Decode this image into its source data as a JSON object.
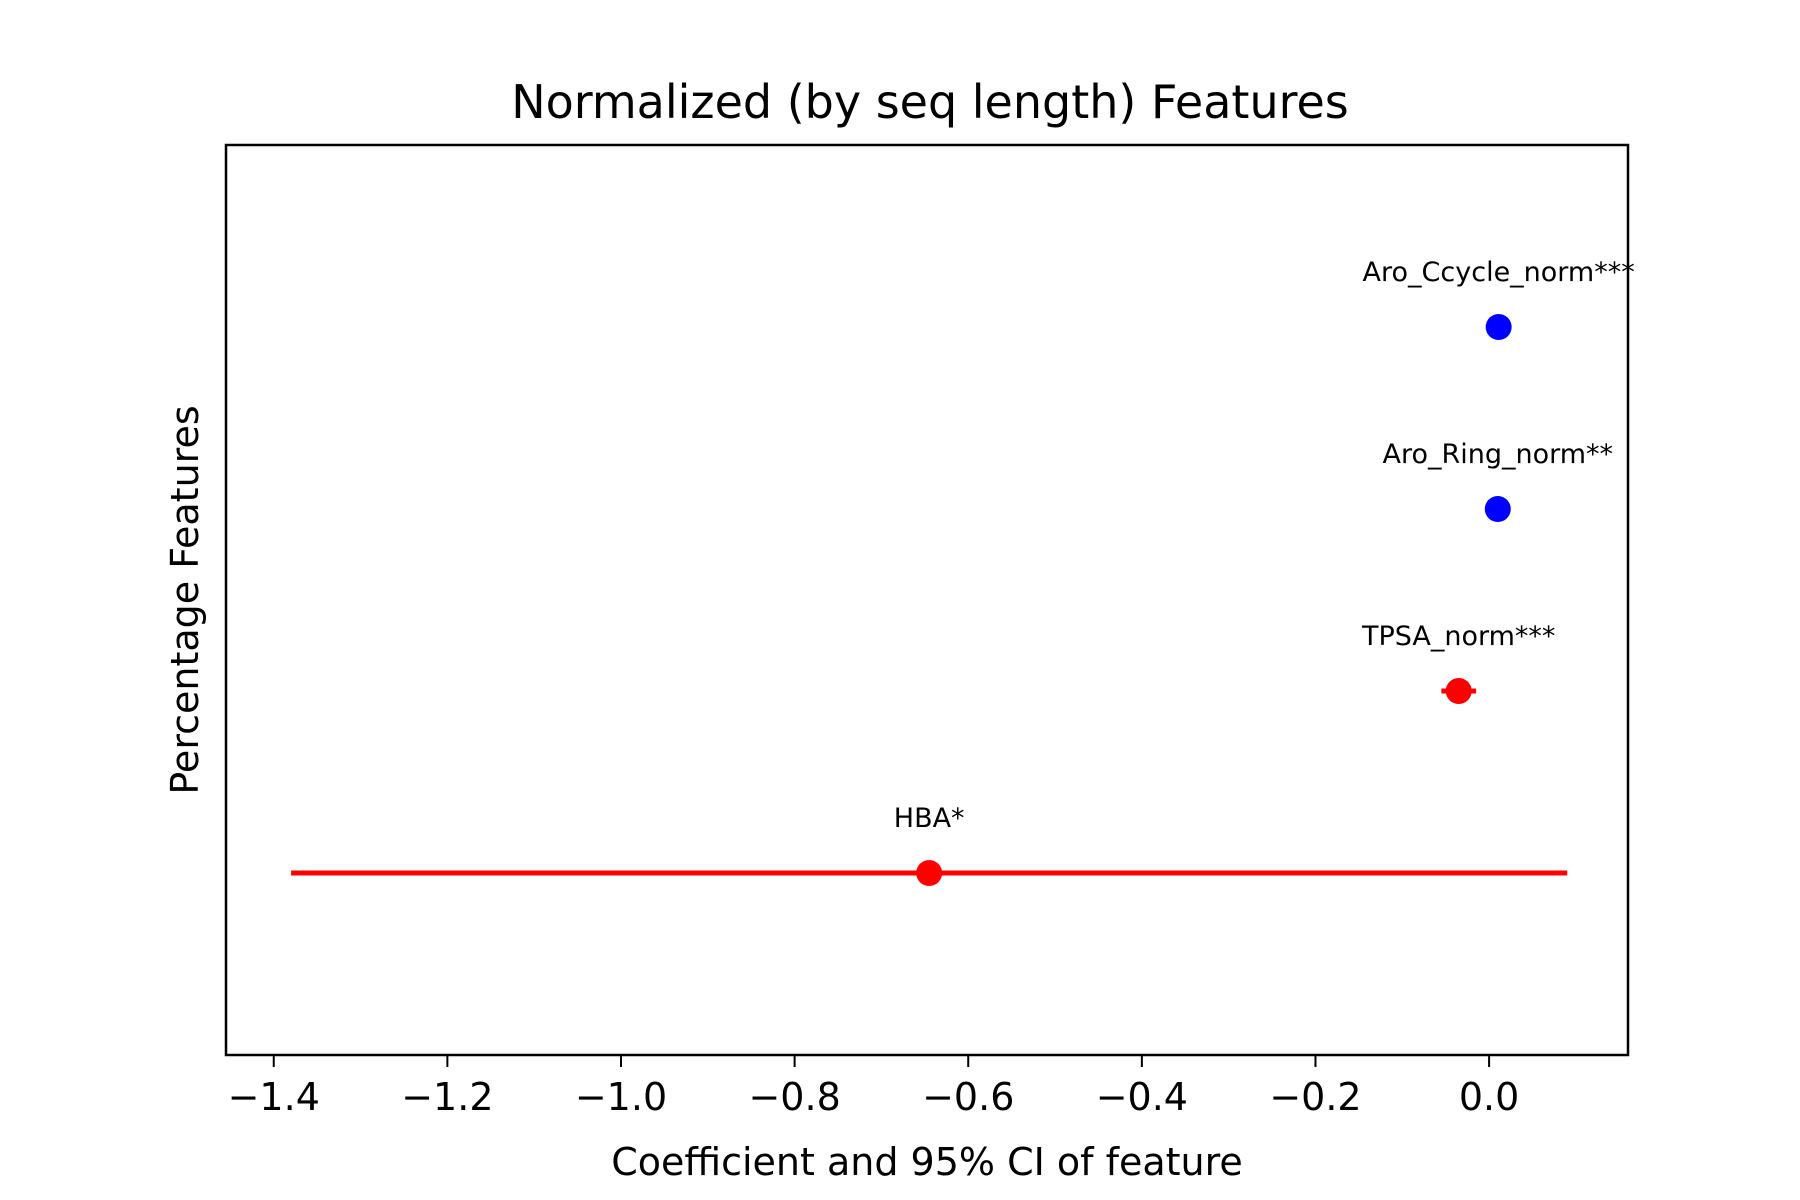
{
  "chart_data": {
    "type": "scatter",
    "title": "Normalized (by seq length) Features",
    "xlabel": "Coefficient and 95% CI of feature",
    "ylabel": "Percentage Features",
    "xlim": [
      -1.455,
      0.16
    ],
    "ylim": [
      -1,
      4
    ],
    "xticks": [
      -1.4,
      -1.2,
      -1.0,
      -0.8,
      -0.6,
      -0.4,
      -0.2,
      0.0
    ],
    "xtick_labels": [
      "−1.4",
      "−1.2",
      "−1.0",
      "−0.8",
      "−0.6",
      "−0.4",
      "−0.2",
      "0.0"
    ],
    "grid": false,
    "points": [
      {
        "label": "HBA*",
        "y": 0,
        "x": -0.645,
        "ci_low": -1.38,
        "ci_high": 0.09,
        "color": "#ff0000"
      },
      {
        "label": "TPSA_norm***",
        "y": 1,
        "x": -0.035,
        "ci_low": -0.055,
        "ci_high": -0.015,
        "color": "#ff0000"
      },
      {
        "label": "Aro_Ring_norm**",
        "y": 2,
        "x": 0.01,
        "ci_low": 0.005,
        "ci_high": 0.015,
        "color": "#0000ff"
      },
      {
        "label": "Aro_Ccycle_norm***",
        "y": 3,
        "x": 0.011,
        "ci_low": 0.006,
        "ci_high": 0.016,
        "color": "#0000ff"
      }
    ]
  }
}
